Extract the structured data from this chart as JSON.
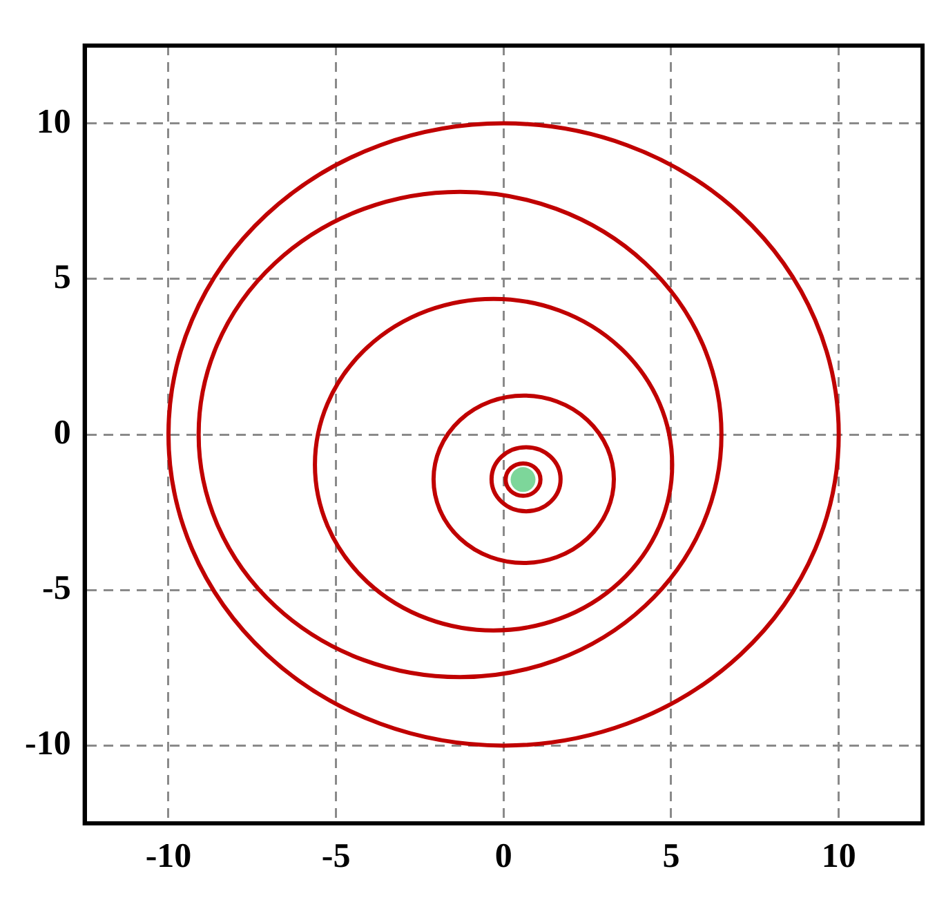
{
  "chart_data": {
    "type": "scatter",
    "xlim": [
      -12.5,
      12.5
    ],
    "ylim": [
      -12.5,
      12.5
    ],
    "xticks": [
      -10,
      -5,
      0,
      5,
      10
    ],
    "yticks": [
      -10,
      -5,
      0,
      5,
      10
    ],
    "grid": true,
    "legend": false,
    "marker": "circle",
    "series": [
      {
        "color": "#7dd69a",
        "x": [
          0.58
        ],
        "values": [
          -1.45
        ]
      }
    ]
  }
}
